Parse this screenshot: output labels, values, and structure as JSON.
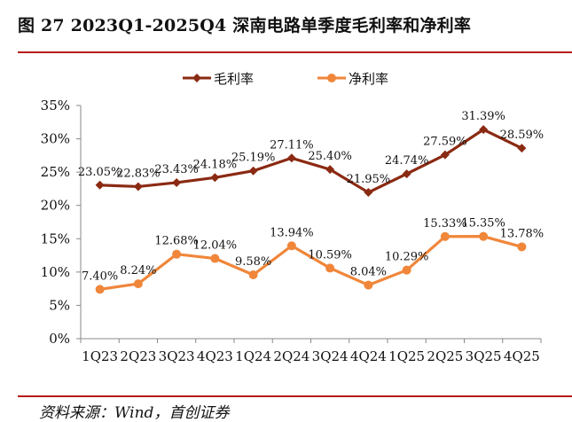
{
  "title": "图 27 2023Q1-2025Q4 深南电路单季度毛利率和净利率",
  "source": "资料来源：Wind，首创证券",
  "chart_data": {
    "type": "line",
    "categories": [
      "1Q23",
      "2Q23",
      "3Q23",
      "4Q23",
      "1Q24",
      "2Q24",
      "3Q24",
      "4Q24",
      "1Q25",
      "2Q25",
      "3Q25",
      "4Q25"
    ],
    "series": [
      {
        "name": "毛利率",
        "color": "#8b2a13",
        "marker": "diamond",
        "values": [
          23.05,
          22.83,
          23.43,
          24.18,
          25.19,
          27.11,
          25.4,
          21.95,
          24.74,
          27.59,
          31.39,
          28.59
        ],
        "labels": [
          "23.05%",
          "22.83%",
          "23.43%",
          "24.18%",
          "25.19%",
          "27.11%",
          "25.40%",
          "21.95%",
          "24.74%",
          "27.59%",
          "31.39%",
          "28.59%"
        ]
      },
      {
        "name": "净利率",
        "color": "#f0863a",
        "marker": "circle",
        "values": [
          7.4,
          8.24,
          12.68,
          12.04,
          9.58,
          13.94,
          10.59,
          8.04,
          10.29,
          15.33,
          15.35,
          13.78
        ],
        "labels": [
          "7.40%",
          "8.24%",
          "12.68%",
          "12.04%",
          "9.58%",
          "13.94%",
          "10.59%",
          "8.04%",
          "10.29%",
          "15.33%",
          "15.35%",
          "13.78%"
        ]
      }
    ],
    "yticks": [
      "0%",
      "5%",
      "10%",
      "15%",
      "20%",
      "25%",
      "30%",
      "35%"
    ],
    "ylim": [
      0,
      35
    ],
    "legend_position": "top-center",
    "grid": false
  }
}
